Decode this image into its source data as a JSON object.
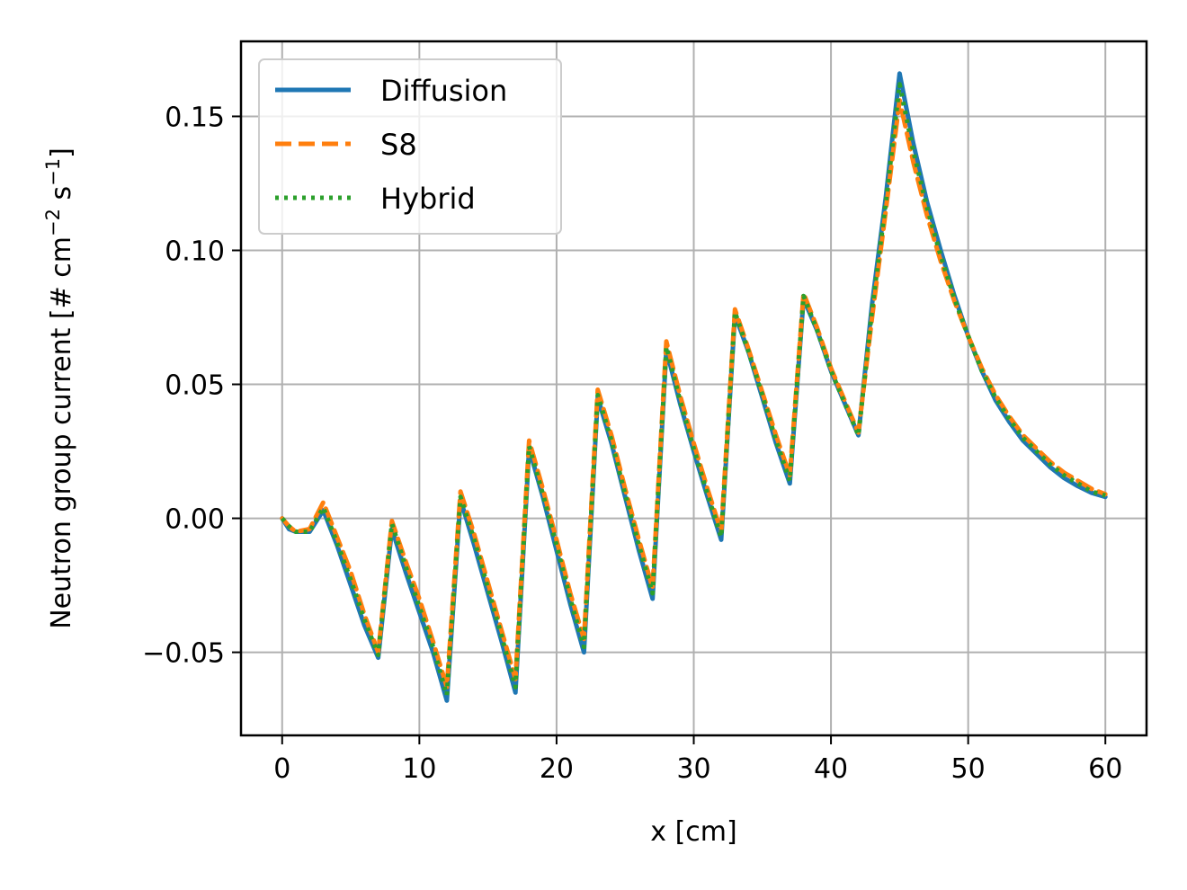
{
  "chart_data": {
    "type": "line",
    "title": "",
    "xlabel": "x [cm]",
    "ylabel_main": "Neutron group current [# cm",
    "ylabel_exp1": "−2",
    "ylabel_mid": " s",
    "ylabel_exp2": "−1",
    "ylabel_end": "]",
    "xlim": [
      -3,
      63
    ],
    "ylim": [
      -0.081,
      0.178
    ],
    "xticks": [
      0,
      10,
      20,
      30,
      40,
      50,
      60
    ],
    "xtick_labels": [
      "0",
      "10",
      "20",
      "30",
      "40",
      "50",
      "60"
    ],
    "yticks": [
      -0.05,
      0.0,
      0.05,
      0.1,
      0.15
    ],
    "ytick_labels": [
      "−0.05",
      "0.00",
      "0.05",
      "0.10",
      "0.15"
    ],
    "grid": true,
    "legend_position": "top-left",
    "series": [
      {
        "name": "Diffusion",
        "color": "#1f77b4",
        "style": "solid",
        "points": [
          [
            0,
            0
          ],
          [
            0.5,
            -0.004
          ],
          [
            1,
            -0.005
          ],
          [
            2,
            -0.005
          ],
          [
            3,
            0.003
          ],
          [
            4,
            -0.01
          ],
          [
            5,
            -0.025
          ],
          [
            6,
            -0.04
          ],
          [
            7,
            -0.052
          ],
          [
            8,
            -0.004
          ],
          [
            9,
            -0.02
          ],
          [
            10,
            -0.035
          ],
          [
            11,
            -0.05
          ],
          [
            12,
            -0.068
          ],
          [
            13,
            0.007
          ],
          [
            14,
            -0.01
          ],
          [
            15,
            -0.028
          ],
          [
            16,
            -0.046
          ],
          [
            17,
            -0.065
          ],
          [
            18,
            0.026
          ],
          [
            19,
            0.008
          ],
          [
            20,
            -0.012
          ],
          [
            21,
            -0.032
          ],
          [
            22,
            -0.05
          ],
          [
            23,
            0.045
          ],
          [
            24,
            0.028
          ],
          [
            25,
            0.008
          ],
          [
            26,
            -0.012
          ],
          [
            27,
            -0.03
          ],
          [
            28,
            0.063
          ],
          [
            29,
            0.043
          ],
          [
            30,
            0.025
          ],
          [
            31,
            0.008
          ],
          [
            32,
            -0.008
          ],
          [
            33,
            0.076
          ],
          [
            34,
            0.062
          ],
          [
            35,
            0.045
          ],
          [
            36,
            0.028
          ],
          [
            37,
            0.013
          ],
          [
            38,
            0.082
          ],
          [
            39,
            0.07
          ],
          [
            40,
            0.055
          ],
          [
            41,
            0.043
          ],
          [
            42,
            0.031
          ],
          [
            43,
            0.08
          ],
          [
            44,
            0.12
          ],
          [
            45,
            0.166
          ],
          [
            46,
            0.14
          ],
          [
            47,
            0.118
          ],
          [
            48,
            0.1
          ],
          [
            49,
            0.083
          ],
          [
            50,
            0.068
          ],
          [
            51,
            0.055
          ],
          [
            52,
            0.044
          ],
          [
            53,
            0.036
          ],
          [
            54,
            0.029
          ],
          [
            55,
            0.024
          ],
          [
            56,
            0.019
          ],
          [
            57,
            0.015
          ],
          [
            58,
            0.012
          ],
          [
            59,
            0.0095
          ],
          [
            60,
            0.008
          ]
        ]
      },
      {
        "name": "S8",
        "color": "#ff7f0e",
        "style": "dashed",
        "points": [
          [
            0,
            0
          ],
          [
            0.5,
            -0.003
          ],
          [
            1,
            -0.005
          ],
          [
            2,
            -0.004
          ],
          [
            3,
            0.006
          ],
          [
            4,
            -0.007
          ],
          [
            5,
            -0.02
          ],
          [
            6,
            -0.036
          ],
          [
            7,
            -0.05
          ],
          [
            8,
            -0.001
          ],
          [
            9,
            -0.016
          ],
          [
            10,
            -0.03
          ],
          [
            11,
            -0.046
          ],
          [
            12,
            -0.063
          ],
          [
            13,
            0.01
          ],
          [
            14,
            -0.006
          ],
          [
            15,
            -0.024
          ],
          [
            16,
            -0.042
          ],
          [
            17,
            -0.06
          ],
          [
            18,
            0.029
          ],
          [
            19,
            0.011
          ],
          [
            20,
            -0.008
          ],
          [
            21,
            -0.028
          ],
          [
            22,
            -0.045
          ],
          [
            23,
            0.048
          ],
          [
            24,
            0.031
          ],
          [
            25,
            0.011
          ],
          [
            26,
            -0.008
          ],
          [
            27,
            -0.026
          ],
          [
            28,
            0.066
          ],
          [
            29,
            0.046
          ],
          [
            30,
            0.028
          ],
          [
            31,
            0.011
          ],
          [
            32,
            -0.005
          ],
          [
            33,
            0.078
          ],
          [
            34,
            0.063
          ],
          [
            35,
            0.047
          ],
          [
            36,
            0.031
          ],
          [
            37,
            0.016
          ],
          [
            38,
            0.084
          ],
          [
            39,
            0.071
          ],
          [
            40,
            0.056
          ],
          [
            41,
            0.044
          ],
          [
            42,
            0.032
          ],
          [
            43,
            0.075
          ],
          [
            44,
            0.115
          ],
          [
            45,
            0.156
          ],
          [
            46,
            0.133
          ],
          [
            47,
            0.113
          ],
          [
            48,
            0.096
          ],
          [
            49,
            0.081
          ],
          [
            50,
            0.068
          ],
          [
            51,
            0.056
          ],
          [
            52,
            0.046
          ],
          [
            53,
            0.038
          ],
          [
            54,
            0.031
          ],
          [
            55,
            0.026
          ],
          [
            56,
            0.021
          ],
          [
            57,
            0.017
          ],
          [
            58,
            0.014
          ],
          [
            59,
            0.011
          ],
          [
            60,
            0.009
          ]
        ]
      },
      {
        "name": "Hybrid",
        "color": "#2ca02c",
        "style": "dotted",
        "points": [
          [
            0,
            0
          ],
          [
            0.5,
            -0.003
          ],
          [
            1,
            -0.005
          ],
          [
            2,
            -0.005
          ],
          [
            3,
            0.004
          ],
          [
            4,
            -0.009
          ],
          [
            5,
            -0.023
          ],
          [
            6,
            -0.038
          ],
          [
            7,
            -0.051
          ],
          [
            8,
            -0.002
          ],
          [
            9,
            -0.018
          ],
          [
            10,
            -0.033
          ],
          [
            11,
            -0.048
          ],
          [
            12,
            -0.066
          ],
          [
            13,
            0.008
          ],
          [
            14,
            -0.008
          ],
          [
            15,
            -0.026
          ],
          [
            16,
            -0.044
          ],
          [
            17,
            -0.063
          ],
          [
            18,
            0.027
          ],
          [
            19,
            0.009
          ],
          [
            20,
            -0.01
          ],
          [
            21,
            -0.03
          ],
          [
            22,
            -0.048
          ],
          [
            23,
            0.046
          ],
          [
            24,
            0.029
          ],
          [
            25,
            0.009
          ],
          [
            26,
            -0.01
          ],
          [
            27,
            -0.028
          ],
          [
            28,
            0.064
          ],
          [
            29,
            0.044
          ],
          [
            30,
            0.026
          ],
          [
            31,
            0.009
          ],
          [
            32,
            -0.007
          ],
          [
            33,
            0.077
          ],
          [
            34,
            0.062
          ],
          [
            35,
            0.046
          ],
          [
            36,
            0.029
          ],
          [
            37,
            0.014
          ],
          [
            38,
            0.083
          ],
          [
            39,
            0.07
          ],
          [
            40,
            0.055
          ],
          [
            41,
            0.043
          ],
          [
            42,
            0.031
          ],
          [
            43,
            0.078
          ],
          [
            44,
            0.118
          ],
          [
            45,
            0.162
          ],
          [
            46,
            0.137
          ],
          [
            47,
            0.116
          ],
          [
            48,
            0.098
          ],
          [
            49,
            0.082
          ],
          [
            50,
            0.068
          ],
          [
            51,
            0.055
          ],
          [
            52,
            0.045
          ],
          [
            53,
            0.037
          ],
          [
            54,
            0.03
          ],
          [
            55,
            0.025
          ],
          [
            56,
            0.02
          ],
          [
            57,
            0.016
          ],
          [
            58,
            0.013
          ],
          [
            59,
            0.01
          ],
          [
            60,
            0.0085
          ]
        ]
      }
    ]
  }
}
